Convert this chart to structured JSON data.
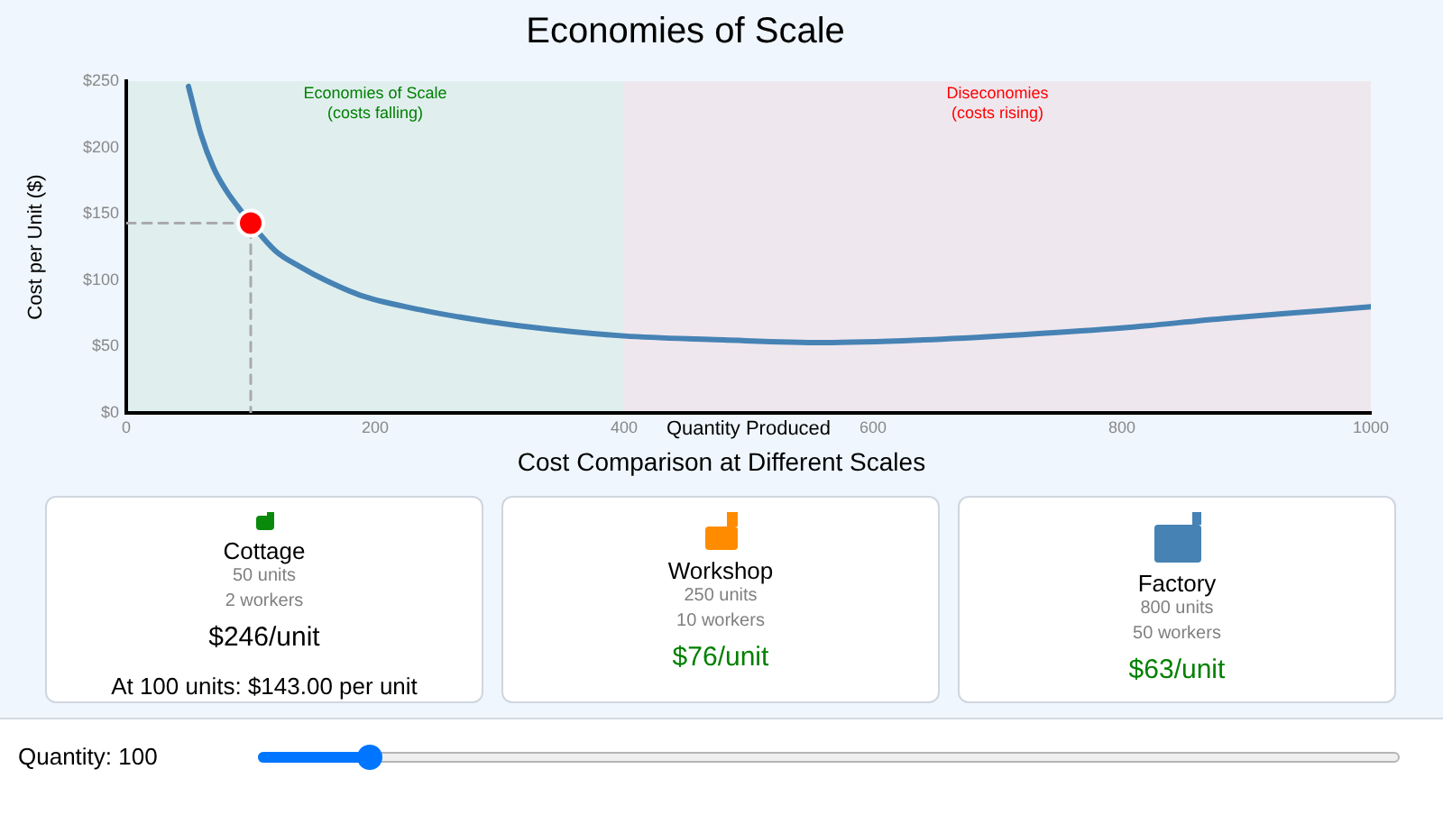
{
  "chart_data": [
    {
      "type": "line",
      "title": "Economies of Scale",
      "xlabel": "Quantity Produced",
      "ylabel": "Cost per Unit ($)",
      "series": [
        {
          "type": "line",
          "color": "#4682b4",
          "marker": "none",
          "x": [
            50,
            60,
            70,
            80,
            90,
            100,
            120,
            140,
            160,
            190,
            240,
            290,
            340,
            400,
            480,
            560,
            640,
            720,
            800,
            880,
            960,
            1000
          ],
          "values": [
            246,
            210,
            185,
            168,
            155,
            143,
            122,
            110,
            100,
            88,
            77,
            69,
            63,
            58,
            55,
            53,
            55,
            59,
            64,
            71,
            77,
            80
          ]
        },
        {
          "type": "line",
          "color": "#aaaaaa",
          "marker": "none",
          "line_style": "dashed",
          "x": [
            0,
            100,
            100
          ],
          "values": [
            143,
            143,
            0
          ]
        },
        {
          "type": "scatter",
          "color": "#ff0000",
          "marker": "circle",
          "x": [
            100
          ],
          "values": [
            143
          ]
        }
      ],
      "xlim": [
        0,
        1000
      ],
      "xticks": [
        0,
        200,
        400,
        600,
        800,
        1000
      ],
      "ylim": [
        0,
        250
      ],
      "yticks": [
        {
          "value": 0,
          "label": "$0"
        },
        {
          "value": 50,
          "label": "$50"
        },
        {
          "value": 100,
          "label": "$100"
        },
        {
          "value": 150,
          "label": "$150"
        },
        {
          "value": 200,
          "label": "$200"
        },
        {
          "value": 250,
          "label": "$250"
        }
      ],
      "bands": [
        {
          "axis": "x",
          "from": 0,
          "to": 400,
          "label": "Economies of Scale\n(costs falling)",
          "color": "#008000"
        },
        {
          "axis": "x",
          "from": 400,
          "to": 1000,
          "label": "Diseconomies\n(costs rising)",
          "color": "#ff0000"
        }
      ]
    },
    {
      "type": "other",
      "title": "Cost Comparison at Different Scales",
      "categories": [
        "Cottage",
        "Workshop",
        "Factory"
      ],
      "colors": [
        "#ffffff",
        "#ffffff",
        "#ffffff"
      ],
      "annotations": [
        "50 units",
        "2 workers",
        "$246/unit",
        "250 units",
        "10 workers",
        "$76/unit",
        "800 units",
        "50 workers",
        "$63/unit",
        "At 100 units: $143.00 per unit",
        "Quantity: 100"
      ]
    }
  ]
}
